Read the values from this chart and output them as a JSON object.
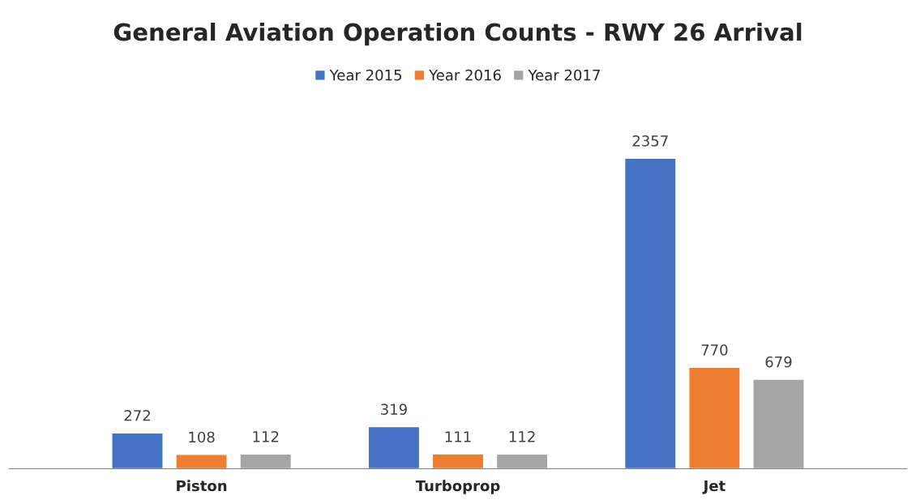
{
  "chart_data": {
    "type": "bar",
    "title": "General Aviation Operation Counts - RWY 26 Arrival",
    "categories": [
      "Piston",
      "Turboprop",
      "Jet"
    ],
    "series": [
      {
        "name": "Year 2015",
        "color": "#4472c4",
        "values": [
          272,
          319,
          2357
        ]
      },
      {
        "name": "Year 2016",
        "color": "#ed7d31",
        "values": [
          108,
          111,
          770
        ]
      },
      {
        "name": "Year 2017",
        "color": "#a5a5a5",
        "values": [
          112,
          112,
          679
        ]
      }
    ],
    "data_labels": true,
    "legend": "top",
    "grid": false,
    "tick_labels": "x"
  }
}
